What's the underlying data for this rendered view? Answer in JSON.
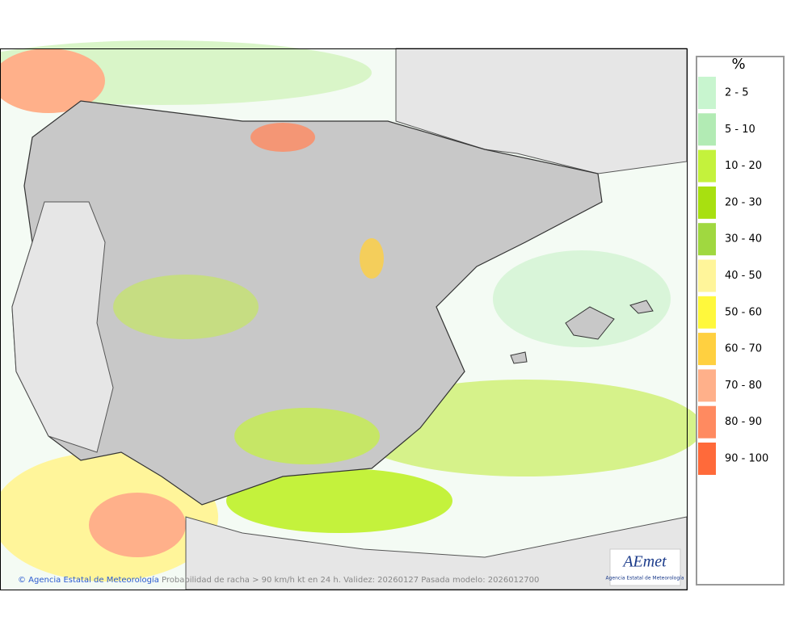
{
  "legend": {
    "title": "%",
    "items": [
      {
        "label": "2 - 5",
        "color": "#c8f5cf"
      },
      {
        "label": "5 - 10",
        "color": "#b2ebb4"
      },
      {
        "label": "10 - 20",
        "color": "#c4f23c"
      },
      {
        "label": "20 - 30",
        "color": "#a8e010"
      },
      {
        "label": "30 - 40",
        "color": "#a0d840"
      },
      {
        "label": "40 - 50",
        "color": "#fff59a"
      },
      {
        "label": "50 - 60",
        "color": "#fff83c"
      },
      {
        "label": "60 - 70",
        "color": "#ffd040"
      },
      {
        "label": "70 - 80",
        "color": "#ffb08a"
      },
      {
        "label": "80 - 90",
        "color": "#ff8a60"
      },
      {
        "label": "90 - 100",
        "color": "#ff6a3a"
      }
    ]
  },
  "footer": {
    "copyright": "© Agencia Estatal de Meteorología",
    "caption": "Probabilidad de racha > 90 km/h kt en 24 h. Validez: 20260127 Pasada modelo: 2026012700"
  },
  "logo": {
    "name": "AEmet",
    "subtitle": "Agencia Estatal de Meteorología"
  }
}
